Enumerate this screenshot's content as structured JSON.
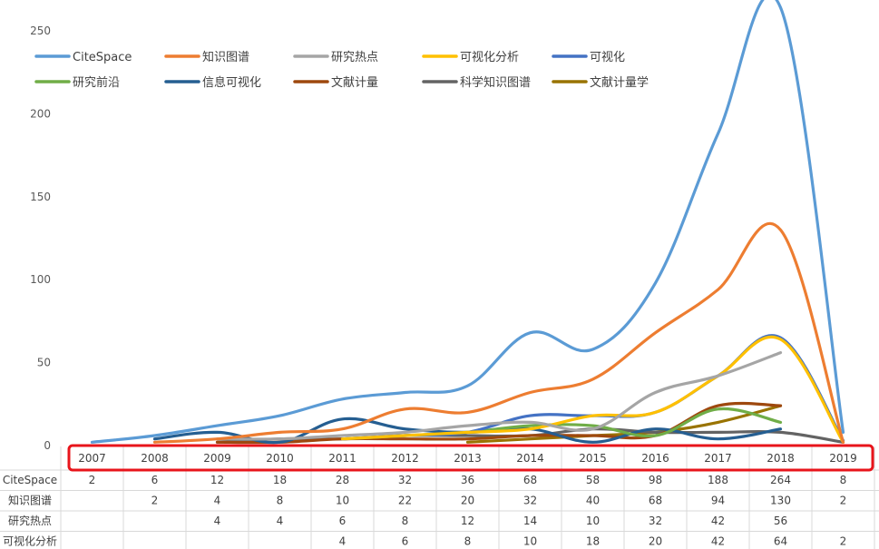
{
  "chart_data": {
    "type": "line",
    "title": "",
    "xlabel": "",
    "ylabel": "",
    "ylim": [
      0,
      250
    ],
    "yticks": [
      0,
      50,
      100,
      150,
      200,
      250
    ],
    "grid": false,
    "legend_position": "top-left",
    "categories": [
      "2007",
      "2008",
      "2009",
      "2010",
      "2011",
      "2012",
      "2013",
      "2014",
      "2015",
      "2016",
      "2017",
      "2018",
      "2019"
    ],
    "series": [
      {
        "name": "CiteSpace",
        "color": "#5B9BD5",
        "values": [
          2,
          6,
          12,
          18,
          28,
          32,
          36,
          68,
          58,
          98,
          188,
          264,
          8
        ]
      },
      {
        "name": "知识图谱",
        "color": "#ED7D31",
        "values": [
          null,
          2,
          4,
          8,
          10,
          22,
          20,
          32,
          40,
          68,
          94,
          130,
          2
        ]
      },
      {
        "name": "研究热点",
        "color": "#A5A5A5",
        "values": [
          null,
          null,
          4,
          4,
          6,
          8,
          12,
          14,
          10,
          32,
          42,
          56,
          null
        ]
      },
      {
        "name": "可视化分析",
        "color": "#FFC000",
        "values": [
          null,
          null,
          null,
          null,
          4,
          6,
          8,
          10,
          18,
          20,
          42,
          64,
          2
        ]
      },
      {
        "name": "可视化",
        "color": "#4472C4",
        "values": [
          null,
          null,
          null,
          null,
          4,
          6,
          8,
          18,
          18,
          20,
          42,
          65,
          3
        ]
      },
      {
        "name": "研究前沿",
        "color": "#70AD47",
        "values": [
          null,
          null,
          null,
          null,
          4,
          6,
          8,
          12,
          12,
          6,
          22,
          14,
          null
        ]
      },
      {
        "name": "信息可视化",
        "color": "#255E91",
        "values": [
          null,
          4,
          8,
          2,
          16,
          10,
          8,
          10,
          2,
          10,
          4,
          10,
          null
        ]
      },
      {
        "name": "文献计量",
        "color": "#9E480E",
        "values": [
          null,
          null,
          2,
          2,
          4,
          4,
          4,
          6,
          6,
          6,
          24,
          24,
          null
        ]
      },
      {
        "name": "科学知识图谱",
        "color": "#636363",
        "values": [
          null,
          null,
          2,
          4,
          4,
          6,
          6,
          6,
          10,
          8,
          8,
          8,
          2
        ]
      },
      {
        "name": "文献计量学",
        "color": "#997300",
        "values": [
          null,
          null,
          null,
          null,
          null,
          null,
          2,
          4,
          6,
          8,
          14,
          24,
          null
        ]
      }
    ],
    "table_rows": [
      {
        "label": "CiteSpace",
        "cells": [
          "2",
          "6",
          "12",
          "18",
          "28",
          "32",
          "36",
          "68",
          "58",
          "98",
          "188",
          "264",
          "8"
        ]
      },
      {
        "label": "知识图谱",
        "cells": [
          "",
          "2",
          "4",
          "8",
          "10",
          "22",
          "20",
          "32",
          "40",
          "68",
          "94",
          "130",
          "2"
        ]
      },
      {
        "label": "研究热点",
        "cells": [
          "",
          "",
          "4",
          "4",
          "6",
          "8",
          "12",
          "14",
          "10",
          "32",
          "42",
          "56",
          ""
        ]
      },
      {
        "label": "可视化分析",
        "cells": [
          "",
          "",
          "",
          "",
          "4",
          "6",
          "8",
          "10",
          "18",
          "20",
          "42",
          "64",
          "2"
        ]
      }
    ],
    "highlight_color": "#E8141B"
  }
}
